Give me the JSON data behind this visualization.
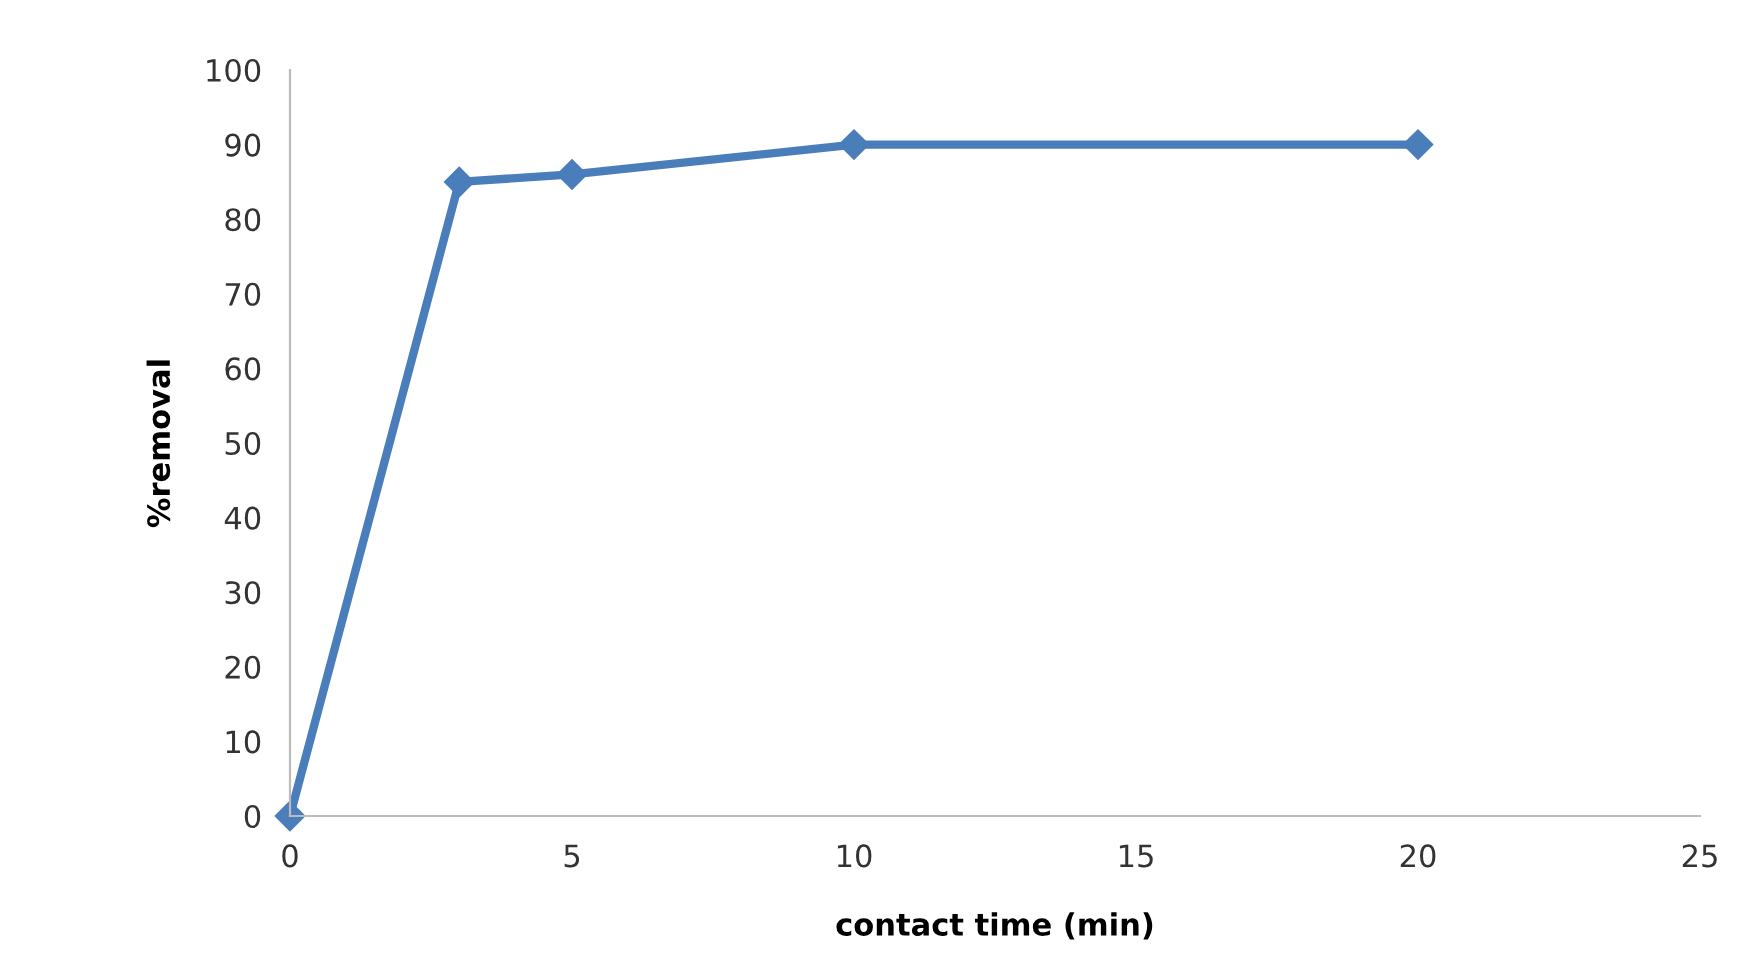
{
  "chart_data": {
    "type": "line",
    "xlabel": "contact time (min)",
    "ylabel": "%removal",
    "x": [
      0,
      3,
      5,
      10,
      20
    ],
    "series": [
      {
        "color": "#4a7ebb",
        "values": [
          0,
          85,
          86,
          90,
          90
        ]
      }
    ],
    "xlim": [
      0,
      25
    ],
    "xticks": [
      0,
      5,
      10,
      15,
      20,
      25
    ],
    "ylim": [
      0,
      100
    ],
    "yticks": [
      0,
      10,
      20,
      30,
      40,
      50,
      60,
      70,
      80,
      90,
      100
    ],
    "grid": false,
    "legend": false,
    "marker": "diamond",
    "line_style": "solid"
  }
}
